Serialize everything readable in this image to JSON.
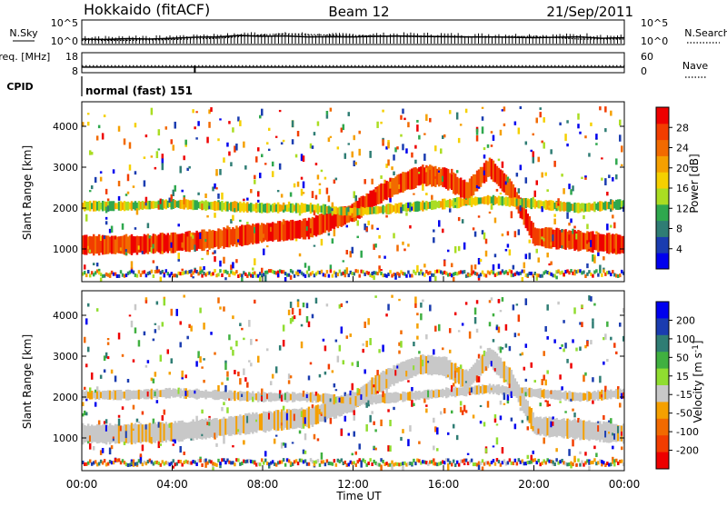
{
  "header": {
    "station": "Hokkaido (fitACF)",
    "beam": "Beam 12",
    "date": "21/Sep/2011"
  },
  "chart_data": [
    {
      "type": "line",
      "title": "",
      "ylabel_left": "N.Sky",
      "ylabel_right": "N.Search",
      "y_tick_labels_left": [
        "10^5",
        "10^0"
      ],
      "y_tick_labels_right": [
        "10^5",
        "10^0"
      ],
      "yscale": "log",
      "ylim": [
        1,
        100000
      ],
      "series": [
        {
          "name": "N.Sky",
          "style": "solid",
          "color": "#000000",
          "x": [
            0,
            1,
            2,
            3,
            4,
            5,
            6,
            7,
            8,
            9,
            10,
            11,
            12,
            13,
            14,
            15,
            16,
            17,
            18,
            19,
            20,
            21,
            22,
            23,
            24
          ],
          "values": [
            10,
            8,
            12,
            10,
            15,
            25,
            30,
            60,
            40,
            50,
            30,
            35,
            30,
            40,
            45,
            40,
            35,
            30,
            30,
            25,
            20,
            25,
            30,
            15,
            20
          ]
        },
        {
          "name": "N.Search",
          "style": "dotted",
          "color": "#000000",
          "x": [
            0,
            2,
            4,
            6,
            8,
            9,
            10,
            12,
            14,
            16,
            18,
            20,
            22,
            24
          ],
          "values": [
            5,
            5,
            8,
            15,
            80,
            150,
            100,
            60,
            40,
            30,
            25,
            40,
            10,
            10
          ]
        }
      ]
    },
    {
      "type": "line",
      "ylabel_left": "Freq. [MHz]",
      "ylabel_right": "Nave",
      "y_tick_labels_left": [
        "18",
        "8"
      ],
      "y_tick_labels_right": [
        "60",
        "0"
      ],
      "ylim_left": [
        8,
        18
      ],
      "ylim_right": [
        0,
        60
      ],
      "series": [
        {
          "name": "Freq.",
          "style": "solid",
          "x": [
            0,
            24
          ],
          "values": [
            10.8,
            10.8
          ]
        },
        {
          "name": "Nave",
          "style": "dotted",
          "x": [
            0,
            24
          ],
          "values": [
            21,
            21
          ]
        }
      ]
    },
    {
      "type": "table",
      "label": "CPID",
      "value": "normal (fast) 151"
    },
    {
      "type": "heatmap",
      "ylabel": "Slant Range [km]",
      "yticks": [
        "1000",
        "2000",
        "3000",
        "4000"
      ],
      "ylim": [
        200,
        4600
      ],
      "colorbar": {
        "label": "Power [dB]",
        "ticks": [
          "28",
          "24",
          "20",
          "16",
          "12",
          "8",
          "4"
        ],
        "colors": [
          "#0000ee",
          "#1a3cb0",
          "#2f7d74",
          "#2fa84e",
          "#aadd22",
          "#f5d000",
          "#f5a000",
          "#f26a00",
          "#f23d00",
          "#ee0000"
        ]
      },
      "bands": [
        {
          "x": [
            0,
            2,
            4,
            5,
            6,
            8,
            10,
            12,
            13,
            14,
            15,
            16,
            17,
            18,
            19,
            20,
            22,
            24
          ],
          "y": [
            1100,
            1100,
            1150,
            1200,
            1250,
            1400,
            1500,
            1900,
            2300,
            2600,
            2800,
            2750,
            2400,
            3000,
            2400,
            1300,
            1200,
            1100
          ],
          "level": "high"
        },
        {
          "x": [
            0,
            2,
            4,
            6,
            8,
            10,
            12,
            14,
            16,
            18,
            20,
            22,
            24
          ],
          "y": [
            2050,
            2050,
            2100,
            2050,
            2000,
            2000,
            1900,
            2000,
            2100,
            2200,
            2100,
            2000,
            2100
          ],
          "level": "medium"
        }
      ]
    },
    {
      "type": "heatmap",
      "ylabel": "Velocity [m s^-1]",
      "yaxis_label": "Slant Range [km]",
      "yticks": [
        "1000",
        "2000",
        "3000",
        "4000"
      ],
      "ylim": [
        200,
        4600
      ],
      "colorbar": {
        "label": "Velocity [m s^-1]",
        "ticks": [
          "200",
          "100",
          "50",
          "15",
          "-15",
          "-50",
          "-100",
          "-200"
        ],
        "colors": [
          "#0000ee",
          "#1a3cb0",
          "#2f7d74",
          "#40b040",
          "#90dd30",
          "#c8c8c8",
          "#f5a000",
          "#f26a00",
          "#f23d00",
          "#ee0000"
        ]
      }
    }
  ],
  "xaxis": {
    "label": "Time UT",
    "ticks": [
      "00:00",
      "04:00",
      "08:00",
      "12:00",
      "16:00",
      "20:00",
      "00:00"
    ],
    "xlim": [
      0,
      24
    ]
  }
}
